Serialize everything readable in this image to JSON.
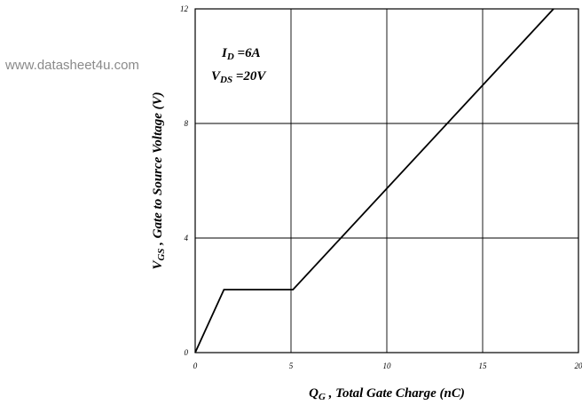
{
  "watermark": "www.datasheet4u.com",
  "chart_data": {
    "type": "line",
    "xlabel": {
      "main": "Q",
      "sub": "G",
      "rest": " , Total Gate Charge (nC)"
    },
    "ylabel": {
      "main": "V",
      "sub": "GS",
      "rest": " , Gate to Source Voltage (V)"
    },
    "xlim": [
      0,
      20
    ],
    "ylim": [
      0,
      12
    ],
    "x_ticks": [
      "0",
      "5",
      "10",
      "15",
      "20"
    ],
    "y_ticks": [
      "0",
      "4",
      "8",
      "12"
    ],
    "grid": true,
    "annotations": [
      {
        "main": "I",
        "sub": "D",
        "rest": " =6A"
      },
      {
        "main": "V",
        "sub": "DS",
        "rest": " =20V"
      }
    ],
    "series": [
      {
        "points": [
          [
            0,
            0
          ],
          [
            1.5,
            2.2
          ],
          [
            5.1,
            2.2
          ],
          [
            18.7,
            12
          ]
        ]
      }
    ],
    "line_color": "#000000"
  }
}
